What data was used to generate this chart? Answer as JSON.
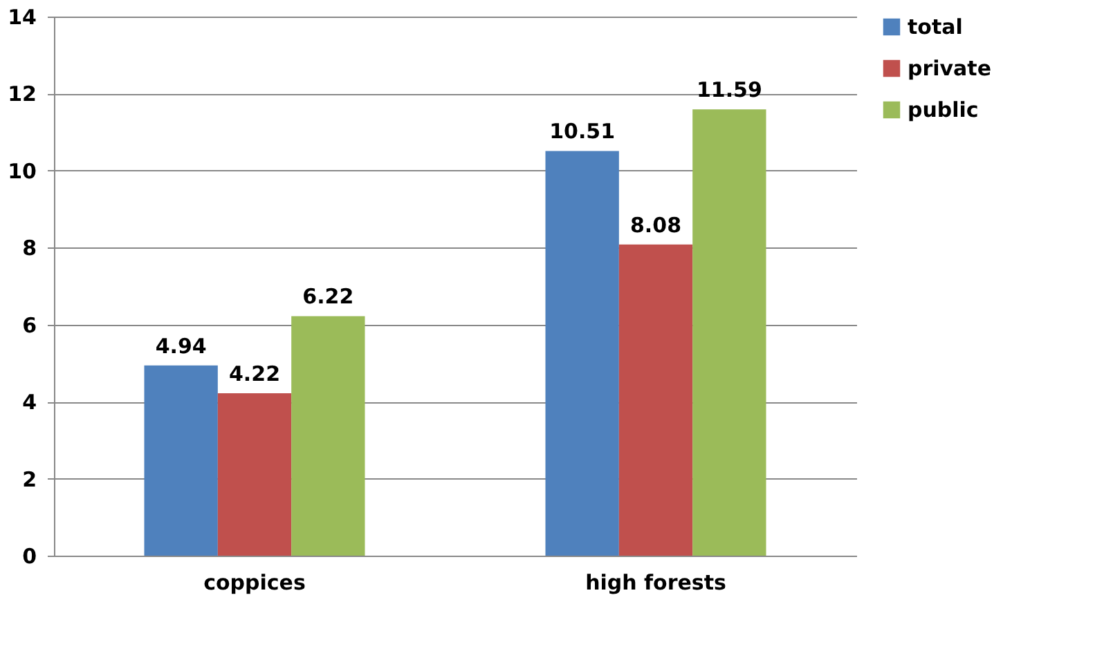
{
  "chart_data": {
    "type": "bar",
    "categories": [
      "coppices",
      "high forests"
    ],
    "series": [
      {
        "name": "total",
        "color": "#4f81bd",
        "values": [
          4.94,
          10.51
        ]
      },
      {
        "name": "private",
        "color": "#c0504d",
        "values": [
          4.22,
          8.08
        ]
      },
      {
        "name": "public",
        "color": "#9bbb59",
        "values": [
          6.22,
          11.59
        ]
      }
    ],
    "ylim": [
      0,
      14
    ],
    "yticks": [
      0,
      2,
      4,
      6,
      8,
      10,
      12,
      14
    ],
    "grid": "y",
    "legend": "right",
    "data_labels": true
  }
}
